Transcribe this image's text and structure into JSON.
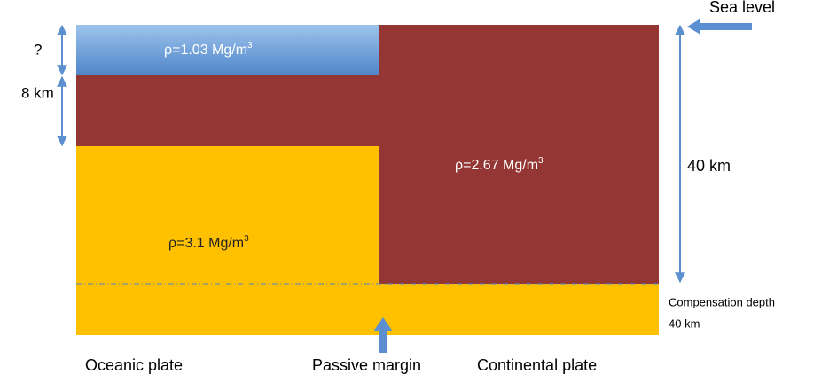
{
  "sea_level": "Sea level",
  "water": {
    "label": "ρ=1.03 Mg/m",
    "sup": "3"
  },
  "continent": {
    "label": "ρ=2.67 Mg/m",
    "sup": "3"
  },
  "mantle": {
    "label": "ρ=3.1 Mg/m",
    "sup": "3"
  },
  "left_depths": {
    "water": "?",
    "crust": "8 km"
  },
  "right_depth": "40 km",
  "compensation": {
    "label": "Compensation depth",
    "depth": "40 km"
  },
  "bottom_labels": {
    "oceanic": "Oceanic plate",
    "margin": "Passive margin",
    "continental": "Continental plate"
  }
}
